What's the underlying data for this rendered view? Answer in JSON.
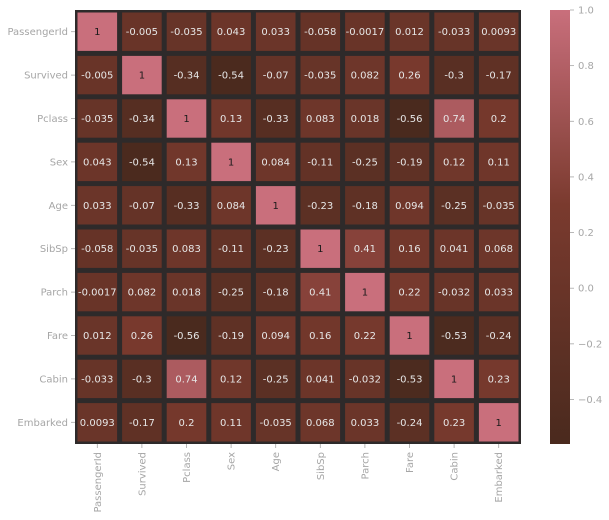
{
  "chart_data": {
    "type": "heatmap",
    "title": "",
    "xlabel": "",
    "ylabel": "",
    "rows": [
      "PassengerId",
      "Survived",
      "Pclass",
      "Sex",
      "Age",
      "SibSp",
      "Parch",
      "Fare",
      "Cabin",
      "Embarked"
    ],
    "columns": [
      "PassengerId",
      "Survived",
      "Pclass",
      "Sex",
      "Age",
      "SibSp",
      "Parch",
      "Fare",
      "Cabin",
      "Embarked"
    ],
    "values": [
      [
        "1",
        "-0.005",
        "-0.035",
        "0.043",
        "0.033",
        "-0.058",
        "-0.0017",
        "0.012",
        "-0.033",
        "0.0093"
      ],
      [
        "-0.005",
        "1",
        "-0.34",
        "-0.54",
        "-0.07",
        "-0.035",
        "0.082",
        "0.26",
        "-0.3",
        "-0.17"
      ],
      [
        "-0.035",
        "-0.34",
        "1",
        "0.13",
        "-0.33",
        "0.083",
        "0.018",
        "-0.56",
        "0.74",
        "0.2"
      ],
      [
        "0.043",
        "-0.54",
        "0.13",
        "1",
        "0.084",
        "-0.11",
        "-0.25",
        "-0.19",
        "0.12",
        "0.11"
      ],
      [
        "0.033",
        "-0.07",
        "-0.33",
        "0.084",
        "1",
        "-0.23",
        "-0.18",
        "0.094",
        "-0.25",
        "-0.035"
      ],
      [
        "-0.058",
        "-0.035",
        "0.083",
        "-0.11",
        "-0.23",
        "1",
        "0.41",
        "0.16",
        "0.041",
        "0.068"
      ],
      [
        "-0.0017",
        "0.082",
        "0.018",
        "-0.25",
        "-0.18",
        "0.41",
        "1",
        "0.22",
        "-0.032",
        "0.033"
      ],
      [
        "0.012",
        "0.26",
        "-0.56",
        "-0.19",
        "0.094",
        "0.16",
        "0.22",
        "1",
        "-0.53",
        "-0.24"
      ],
      [
        "-0.033",
        "-0.3",
        "0.74",
        "0.12",
        "-0.25",
        "0.041",
        "-0.032",
        "-0.53",
        "1",
        "0.23"
      ],
      [
        "0.0093",
        "-0.17",
        "0.2",
        "0.11",
        "-0.035",
        "0.068",
        "0.033",
        "-0.24",
        "0.23",
        "1"
      ]
    ],
    "color_range": [
      -0.56,
      1.0
    ],
    "colorbar_ticks": [
      "1.0",
      "0.8",
      "0.6",
      "0.4",
      "0.2",
      "0.0",
      "−0.2",
      "−0.4"
    ],
    "colorbar_tick_values": [
      1.0,
      0.8,
      0.6,
      0.4,
      0.2,
      0.0,
      -0.2,
      -0.4
    ],
    "colors": {
      "low": "#4a2a1e",
      "mid": "#7a3a2e",
      "high": "#c96f7c",
      "grid_line": "#2e2a2a",
      "tick_text": "#a6a6a6",
      "light_text": "#e6e6e6",
      "dark_text": "#1a1a1a"
    },
    "grid": false,
    "legend": "colorbar-right"
  }
}
